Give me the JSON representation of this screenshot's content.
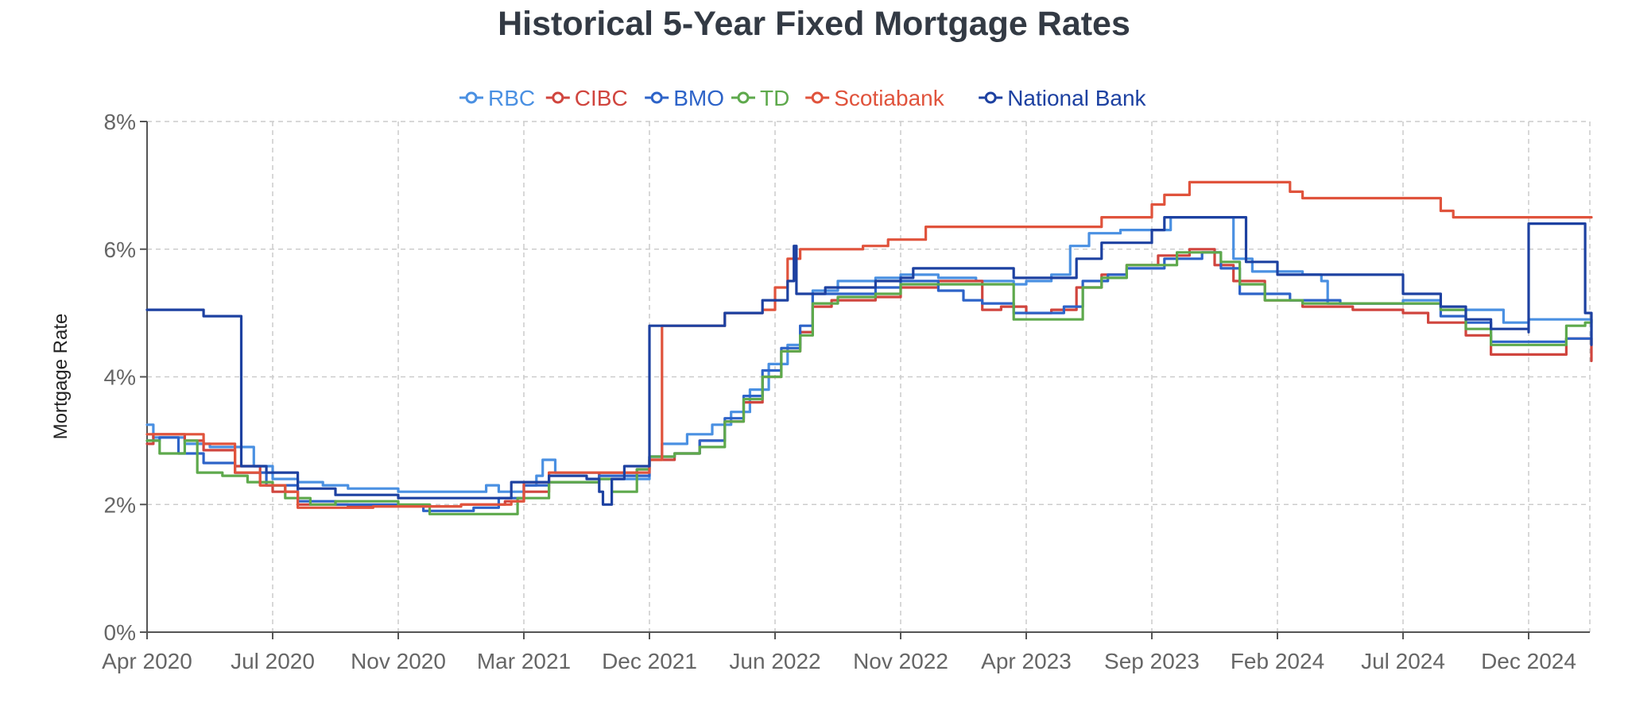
{
  "chart_data": {
    "type": "line",
    "title": "Historical 5-Year Fixed Mortgage Rates",
    "xlabel": "",
    "ylabel": "Mortgage Rate",
    "x_ticks": [
      "Apr 2020",
      "Jul 2020",
      "Nov 2020",
      "Mar 2021",
      "Dec 2021",
      "Jun 2022",
      "Nov 2022",
      "Apr 2023",
      "Sep 2023",
      "Feb 2024",
      "Jul 2024",
      "Dec 2024"
    ],
    "y_ticks": [
      "0%",
      "2%",
      "4%",
      "6%",
      "8%"
    ],
    "ylim": [
      0,
      8
    ],
    "grid": true,
    "legend_position": "top",
    "series": [
      {
        "name": "RBC",
        "color": "#4a90e2",
        "points": [
          [
            0,
            3.25
          ],
          [
            0.05,
            3.05
          ],
          [
            0.3,
            2.95
          ],
          [
            0.5,
            2.9
          ],
          [
            0.7,
            2.9
          ],
          [
            0.85,
            2.6
          ],
          [
            1.0,
            2.4
          ],
          [
            1.2,
            2.35
          ],
          [
            1.4,
            2.3
          ],
          [
            1.6,
            2.25
          ],
          [
            2.0,
            2.2
          ],
          [
            2.6,
            2.2
          ],
          [
            2.7,
            2.3
          ],
          [
            2.8,
            2.2
          ],
          [
            3.0,
            2.3
          ],
          [
            3.1,
            2.45
          ],
          [
            3.15,
            2.7
          ],
          [
            3.25,
            2.5
          ],
          [
            3.6,
            2.4
          ],
          [
            3.8,
            2.4
          ],
          [
            4.0,
            2.75
          ],
          [
            4.1,
            2.95
          ],
          [
            4.3,
            3.1
          ],
          [
            4.5,
            3.25
          ],
          [
            4.65,
            3.45
          ],
          [
            4.8,
            3.8
          ],
          [
            4.95,
            4.2
          ],
          [
            5.1,
            4.5
          ],
          [
            5.2,
            4.7
          ],
          [
            5.3,
            5.35
          ],
          [
            5.5,
            5.5
          ],
          [
            5.8,
            5.55
          ],
          [
            6.0,
            5.6
          ],
          [
            6.3,
            5.55
          ],
          [
            6.6,
            5.5
          ],
          [
            6.9,
            5.45
          ],
          [
            7.0,
            5.5
          ],
          [
            7.2,
            5.6
          ],
          [
            7.35,
            6.05
          ],
          [
            7.5,
            6.25
          ],
          [
            7.75,
            6.3
          ],
          [
            8.0,
            6.3
          ],
          [
            8.15,
            6.5
          ],
          [
            8.6,
            6.5
          ],
          [
            8.65,
            5.85
          ],
          [
            8.8,
            5.65
          ],
          [
            9.2,
            5.6
          ],
          [
            9.35,
            5.5
          ],
          [
            9.4,
            5.15
          ],
          [
            10.0,
            5.2
          ],
          [
            10.3,
            5.05
          ],
          [
            10.8,
            4.85
          ],
          [
            11.0,
            4.9
          ],
          [
            11.4,
            4.9
          ],
          [
            11.5,
            4.5
          ]
        ]
      },
      {
        "name": "CIBC",
        "color": "#d0453e",
        "points": [
          [
            0,
            2.95
          ],
          [
            0.05,
            3.1
          ],
          [
            0.3,
            3.0
          ],
          [
            0.45,
            2.85
          ],
          [
            0.7,
            2.6
          ],
          [
            0.9,
            2.3
          ],
          [
            1.0,
            2.2
          ],
          [
            1.2,
            2.0
          ],
          [
            1.6,
            1.97
          ],
          [
            2.5,
            2.0
          ],
          [
            2.7,
            2.0
          ],
          [
            2.85,
            2.05
          ],
          [
            3.0,
            2.2
          ],
          [
            3.2,
            2.35
          ],
          [
            3.6,
            2.5
          ],
          [
            3.9,
            2.55
          ],
          [
            4.0,
            2.7
          ],
          [
            4.2,
            2.8
          ],
          [
            4.4,
            3.0
          ],
          [
            4.6,
            3.3
          ],
          [
            4.75,
            3.6
          ],
          [
            4.9,
            4.0
          ],
          [
            5.05,
            4.4
          ],
          [
            5.2,
            4.7
          ],
          [
            5.3,
            5.1
          ],
          [
            5.45,
            5.2
          ],
          [
            5.8,
            5.25
          ],
          [
            6.0,
            5.4
          ],
          [
            6.3,
            5.5
          ],
          [
            6.5,
            5.5
          ],
          [
            6.65,
            5.05
          ],
          [
            6.8,
            5.1
          ],
          [
            7.0,
            5.0
          ],
          [
            7.2,
            5.05
          ],
          [
            7.4,
            5.4
          ],
          [
            7.6,
            5.6
          ],
          [
            7.8,
            5.75
          ],
          [
            8.05,
            5.9
          ],
          [
            8.3,
            6.0
          ],
          [
            8.5,
            5.75
          ],
          [
            8.65,
            5.5
          ],
          [
            8.9,
            5.2
          ],
          [
            9.2,
            5.1
          ],
          [
            9.6,
            5.05
          ],
          [
            10.0,
            5.0
          ],
          [
            10.2,
            4.85
          ],
          [
            10.5,
            4.65
          ],
          [
            10.7,
            4.35
          ],
          [
            11.1,
            4.35
          ],
          [
            11.3,
            4.6
          ],
          [
            11.45,
            4.6
          ],
          [
            11.5,
            4.25
          ]
        ]
      },
      {
        "name": "BMO",
        "color": "#2d63c8",
        "points": [
          [
            0,
            3.0
          ],
          [
            0.1,
            3.05
          ],
          [
            0.25,
            2.8
          ],
          [
            0.45,
            2.65
          ],
          [
            0.7,
            2.5
          ],
          [
            0.95,
            2.3
          ],
          [
            1.2,
            2.05
          ],
          [
            1.5,
            2.0
          ],
          [
            2.0,
            1.98
          ],
          [
            2.2,
            1.9
          ],
          [
            2.6,
            1.95
          ],
          [
            2.8,
            2.1
          ],
          [
            3.0,
            2.3
          ],
          [
            3.2,
            2.35
          ],
          [
            3.6,
            2.45
          ],
          [
            3.9,
            2.45
          ],
          [
            4.0,
            2.75
          ],
          [
            4.2,
            2.8
          ],
          [
            4.4,
            3.0
          ],
          [
            4.6,
            3.35
          ],
          [
            4.75,
            3.7
          ],
          [
            4.9,
            4.1
          ],
          [
            5.05,
            4.45
          ],
          [
            5.2,
            4.8
          ],
          [
            5.3,
            5.3
          ],
          [
            5.5,
            5.3
          ],
          [
            5.8,
            5.4
          ],
          [
            6.0,
            5.5
          ],
          [
            6.3,
            5.35
          ],
          [
            6.5,
            5.2
          ],
          [
            6.65,
            5.15
          ],
          [
            6.8,
            5.15
          ],
          [
            6.9,
            5.0
          ],
          [
            7.1,
            5.0
          ],
          [
            7.3,
            5.1
          ],
          [
            7.45,
            5.5
          ],
          [
            7.65,
            5.6
          ],
          [
            7.8,
            5.7
          ],
          [
            8.1,
            5.85
          ],
          [
            8.4,
            5.95
          ],
          [
            8.55,
            5.7
          ],
          [
            8.7,
            5.3
          ],
          [
            9.1,
            5.2
          ],
          [
            9.5,
            5.15
          ],
          [
            10.1,
            5.15
          ],
          [
            10.3,
            4.95
          ],
          [
            10.5,
            4.85
          ],
          [
            10.7,
            4.55
          ],
          [
            11.1,
            4.55
          ],
          [
            11.3,
            4.6
          ],
          [
            11.45,
            4.6
          ],
          [
            11.5,
            4.6
          ]
        ]
      },
      {
        "name": "TD",
        "color": "#5ea94c",
        "points": [
          [
            0,
            3.0
          ],
          [
            0.1,
            2.8
          ],
          [
            0.3,
            3.0
          ],
          [
            0.4,
            2.5
          ],
          [
            0.6,
            2.45
          ],
          [
            0.8,
            2.35
          ],
          [
            1.0,
            2.3
          ],
          [
            1.1,
            2.1
          ],
          [
            1.3,
            2.0
          ],
          [
            1.5,
            2.05
          ],
          [
            2.0,
            2.0
          ],
          [
            2.25,
            1.85
          ],
          [
            2.85,
            1.85
          ],
          [
            2.95,
            2.1
          ],
          [
            3.2,
            2.35
          ],
          [
            3.6,
            2.4
          ],
          [
            3.7,
            2.2
          ],
          [
            3.9,
            2.55
          ],
          [
            4.0,
            2.75
          ],
          [
            4.2,
            2.8
          ],
          [
            4.4,
            2.9
          ],
          [
            4.6,
            3.3
          ],
          [
            4.75,
            3.65
          ],
          [
            4.9,
            4.0
          ],
          [
            5.05,
            4.4
          ],
          [
            5.2,
            4.65
          ],
          [
            5.3,
            5.15
          ],
          [
            5.5,
            5.25
          ],
          [
            5.8,
            5.3
          ],
          [
            6.0,
            5.45
          ],
          [
            6.3,
            5.45
          ],
          [
            6.8,
            5.45
          ],
          [
            6.9,
            4.9
          ],
          [
            7.3,
            4.9
          ],
          [
            7.45,
            5.4
          ],
          [
            7.6,
            5.55
          ],
          [
            7.8,
            5.75
          ],
          [
            8.2,
            5.95
          ],
          [
            8.55,
            5.8
          ],
          [
            8.7,
            5.45
          ],
          [
            8.9,
            5.2
          ],
          [
            9.2,
            5.15
          ],
          [
            10.1,
            5.15
          ],
          [
            10.3,
            5.05
          ],
          [
            10.5,
            4.75
          ],
          [
            10.7,
            4.5
          ],
          [
            11.1,
            4.5
          ],
          [
            11.3,
            4.8
          ],
          [
            11.45,
            4.85
          ],
          [
            11.5,
            4.9
          ]
        ]
      },
      {
        "name": "Scotiabank",
        "color": "#e0533c",
        "points": [
          [
            0,
            3.1
          ],
          [
            0.2,
            3.1
          ],
          [
            0.45,
            2.95
          ],
          [
            0.7,
            2.5
          ],
          [
            0.9,
            2.3
          ],
          [
            1.0,
            2.3
          ],
          [
            1.1,
            2.2
          ],
          [
            1.2,
            1.95
          ],
          [
            1.8,
            1.97
          ],
          [
            2.5,
            2.0
          ],
          [
            2.8,
            2.0
          ],
          [
            2.9,
            2.05
          ],
          [
            3.0,
            2.35
          ],
          [
            3.2,
            2.5
          ],
          [
            3.6,
            2.5
          ],
          [
            3.9,
            2.5
          ],
          [
            4.0,
            2.7
          ],
          [
            4.1,
            4.8
          ],
          [
            4.5,
            4.8
          ],
          [
            4.6,
            5.0
          ],
          [
            4.9,
            5.05
          ],
          [
            5.0,
            5.4
          ],
          [
            5.1,
            5.85
          ],
          [
            5.2,
            6.0
          ],
          [
            5.7,
            6.05
          ],
          [
            5.9,
            6.15
          ],
          [
            6.0,
            6.15
          ],
          [
            6.2,
            6.35
          ],
          [
            7.0,
            6.35
          ],
          [
            7.4,
            6.35
          ],
          [
            7.6,
            6.5
          ],
          [
            8.0,
            6.7
          ],
          [
            8.1,
            6.85
          ],
          [
            8.3,
            7.05
          ],
          [
            9.0,
            7.05
          ],
          [
            9.1,
            6.9
          ],
          [
            9.2,
            6.8
          ],
          [
            10.0,
            6.8
          ],
          [
            10.2,
            6.8
          ],
          [
            10.3,
            6.6
          ],
          [
            10.4,
            6.5
          ],
          [
            11.5,
            6.5
          ]
        ]
      },
      {
        "name": "National Bank",
        "color": "#1d41a1",
        "points": [
          [
            0,
            5.05
          ],
          [
            0.4,
            5.05
          ],
          [
            0.45,
            4.95
          ],
          [
            0.65,
            4.95
          ],
          [
            0.75,
            2.6
          ],
          [
            0.95,
            2.5
          ],
          [
            1.2,
            2.25
          ],
          [
            1.5,
            2.15
          ],
          [
            2.0,
            2.1
          ],
          [
            2.5,
            2.1
          ],
          [
            2.8,
            2.1
          ],
          [
            2.9,
            2.35
          ],
          [
            3.2,
            2.45
          ],
          [
            3.5,
            2.4
          ],
          [
            3.6,
            2.2
          ],
          [
            3.63,
            2.0
          ],
          [
            3.7,
            2.4
          ],
          [
            3.8,
            2.6
          ],
          [
            4.0,
            4.8
          ],
          [
            4.5,
            4.8
          ],
          [
            4.6,
            5.0
          ],
          [
            4.8,
            5.0
          ],
          [
            4.9,
            5.2
          ],
          [
            5.1,
            5.5
          ],
          [
            5.15,
            6.05
          ],
          [
            5.17,
            5.3
          ],
          [
            5.4,
            5.4
          ],
          [
            5.8,
            5.5
          ],
          [
            6.0,
            5.55
          ],
          [
            6.1,
            5.7
          ],
          [
            6.4,
            5.7
          ],
          [
            6.8,
            5.7
          ],
          [
            6.9,
            5.55
          ],
          [
            7.2,
            5.55
          ],
          [
            7.4,
            5.85
          ],
          [
            7.6,
            6.1
          ],
          [
            8.0,
            6.3
          ],
          [
            8.1,
            6.5
          ],
          [
            8.7,
            6.5
          ],
          [
            8.75,
            5.8
          ],
          [
            9.0,
            5.6
          ],
          [
            9.5,
            5.6
          ],
          [
            9.9,
            5.6
          ],
          [
            10.0,
            5.3
          ],
          [
            10.3,
            5.1
          ],
          [
            10.5,
            4.9
          ],
          [
            10.7,
            4.75
          ],
          [
            11.0,
            4.7
          ],
          [
            11.0,
            6.4
          ],
          [
            11.3,
            6.4
          ],
          [
            11.45,
            5.0
          ],
          [
            11.5,
            4.5
          ]
        ]
      }
    ]
  }
}
